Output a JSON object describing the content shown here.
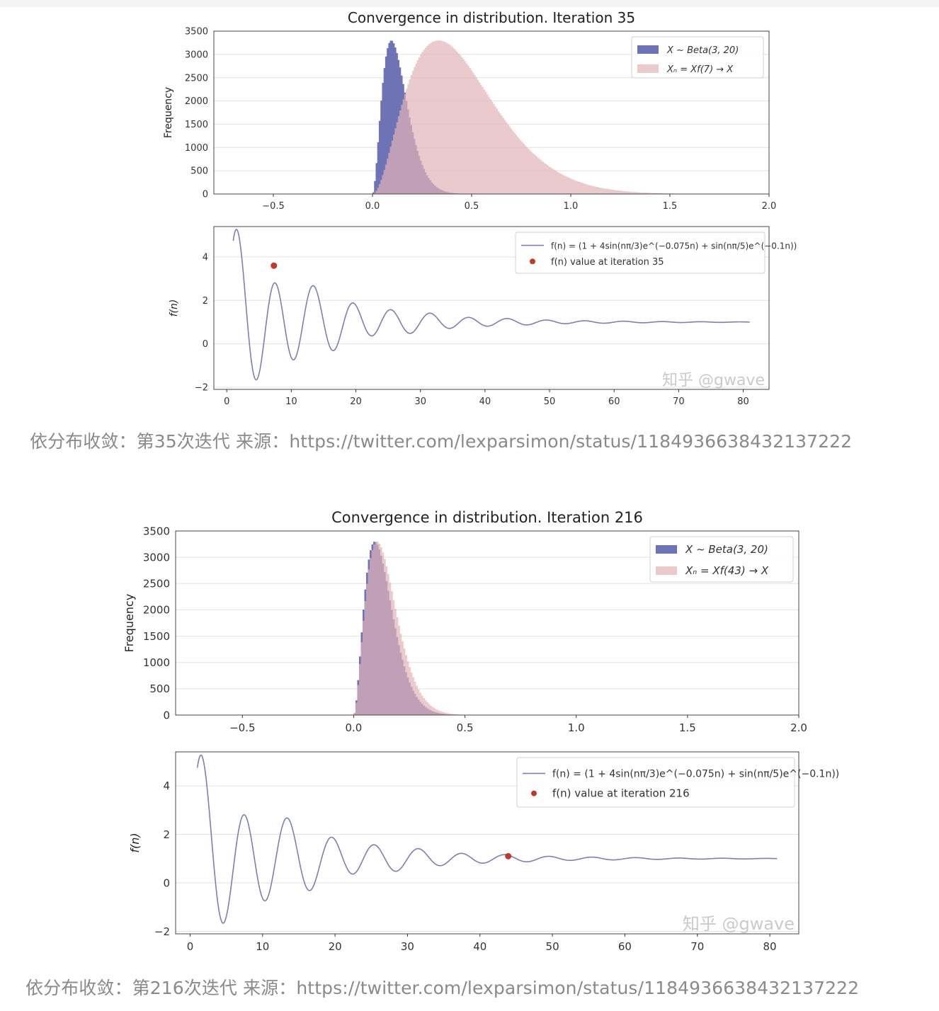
{
  "figures": [
    {
      "id": "iteration-35",
      "caption": "依分布收敛：第35次迭代 来源：https://twitter.com/lexparsimon/status/1184936638432137222",
      "watermark": "知乎 @gwave",
      "chart_data": [
        {
          "type": "histogram",
          "title": "Convergence in distribution. Iteration 35",
          "ylabel": "Frequency",
          "xlim": [
            -0.8,
            2.0
          ],
          "ylim": [
            0,
            3500
          ],
          "xticks": [
            "−0.5",
            "0.0",
            "0.5",
            "1.0",
            "1.5",
            "2.0"
          ],
          "xtick_values": [
            -0.5,
            0.0,
            0.5,
            1.0,
            1.5,
            2.0
          ],
          "yticks": [
            "0",
            "500",
            "1000",
            "1500",
            "2000",
            "2500",
            "3000",
            "3500"
          ],
          "ytick_values": [
            0,
            500,
            1000,
            1500,
            2000,
            2500,
            3000,
            3500
          ],
          "grid": true,
          "legend_position": "top-right",
          "series": [
            {
              "name": "X ∼ Beta(3, 20)",
              "distribution": "Beta(3,20)",
              "peak_frequency": 3300,
              "mode": 0.095,
              "scale": 1,
              "color": "#5e64ad",
              "opacity": 0.9
            },
            {
              "name": "Xₙ = Xf(7) → X",
              "distribution": "Beta(3,20)",
              "peak_frequency": 3300,
              "mode": 0.33,
              "scale": 3.5,
              "color": "#e3b3b8",
              "opacity": 0.7
            }
          ]
        },
        {
          "type": "line",
          "ylabel": "f(n)",
          "xlim": [
            -2,
            84
          ],
          "ylim": [
            -2.1,
            5.4
          ],
          "xticks": [
            "0",
            "10",
            "20",
            "30",
            "40",
            "50",
            "60",
            "70",
            "80"
          ],
          "xtick_values": [
            0,
            10,
            20,
            30,
            40,
            50,
            60,
            70,
            80
          ],
          "yticks": [
            "−2",
            "0",
            "2",
            "4"
          ],
          "ytick_values": [
            -2,
            0,
            2,
            4
          ],
          "grid": true,
          "legend_position": "top-right",
          "function": "f(n) = 1 + 4·sin(πn/3)·e^(−0.075n) + sin(πn/5)·e^(−0.1n)",
          "x_range": [
            1,
            81
          ],
          "series": [
            {
              "name": "f(n) = (1 + 4sin(nπ/3)e^(−0.075n) + sin(nπ/5)e^(−0.1n))",
              "color": "#7d7fb5"
            }
          ],
          "marker": {
            "label": "f(n) value at iteration 35",
            "x": 7.3,
            "y": 3.6,
            "color": "#c0392b"
          }
        }
      ]
    },
    {
      "id": "iteration-216",
      "caption": "依分布收敛：第216次迭代 来源：https://twitter.com/lexparsimon/status/1184936638432137222",
      "watermark": "知乎 @gwave",
      "chart_data": [
        {
          "type": "histogram",
          "title": "Convergence in distribution. Iteration 216",
          "ylabel": "Frequency",
          "xlim": [
            -0.8,
            2.0
          ],
          "ylim": [
            0,
            3500
          ],
          "xticks": [
            "−0.5",
            "0.0",
            "0.5",
            "1.0",
            "1.5",
            "2.0"
          ],
          "xtick_values": [
            -0.5,
            0.0,
            0.5,
            1.0,
            1.5,
            2.0
          ],
          "yticks": [
            "0",
            "500",
            "1000",
            "1500",
            "2000",
            "2500",
            "3000",
            "3500"
          ],
          "ytick_values": [
            0,
            500,
            1000,
            1500,
            2000,
            2500,
            3000,
            3500
          ],
          "grid": true,
          "legend_position": "top-right",
          "series": [
            {
              "name": "X ∼ Beta(3, 20)",
              "distribution": "Beta(3,20)",
              "peak_frequency": 3300,
              "mode": 0.095,
              "scale": 1,
              "color": "#5e64ad",
              "opacity": 0.9
            },
            {
              "name": "Xₙ = Xf(43) → X",
              "distribution": "Beta(3,20)",
              "peak_frequency": 3300,
              "mode": 0.105,
              "scale": 1.1,
              "color": "#e3b3b8",
              "opacity": 0.7
            }
          ]
        },
        {
          "type": "line",
          "ylabel": "f(n)",
          "xlim": [
            -2,
            84
          ],
          "ylim": [
            -2.1,
            5.4
          ],
          "xticks": [
            "0",
            "10",
            "20",
            "30",
            "40",
            "50",
            "60",
            "70",
            "80"
          ],
          "xtick_values": [
            0,
            10,
            20,
            30,
            40,
            50,
            60,
            70,
            80
          ],
          "yticks": [
            "−2",
            "0",
            "2",
            "4"
          ],
          "ytick_values": [
            -2,
            0,
            2,
            4
          ],
          "grid": true,
          "legend_position": "top-right",
          "function": "f(n) = 1 + 4·sin(πn/3)·e^(−0.075n) + sin(πn/5)·e^(−0.1n)",
          "x_range": [
            1,
            81
          ],
          "series": [
            {
              "name": "f(n) = (1 + 4sin(nπ/3)e^(−0.075n) + sin(nπ/5)e^(−0.1n))",
              "color": "#7d7fb5"
            }
          ],
          "marker": {
            "label": "f(n) value at iteration 216",
            "x": 43.9,
            "y": 1.1,
            "color": "#c0392b"
          }
        }
      ]
    }
  ]
}
